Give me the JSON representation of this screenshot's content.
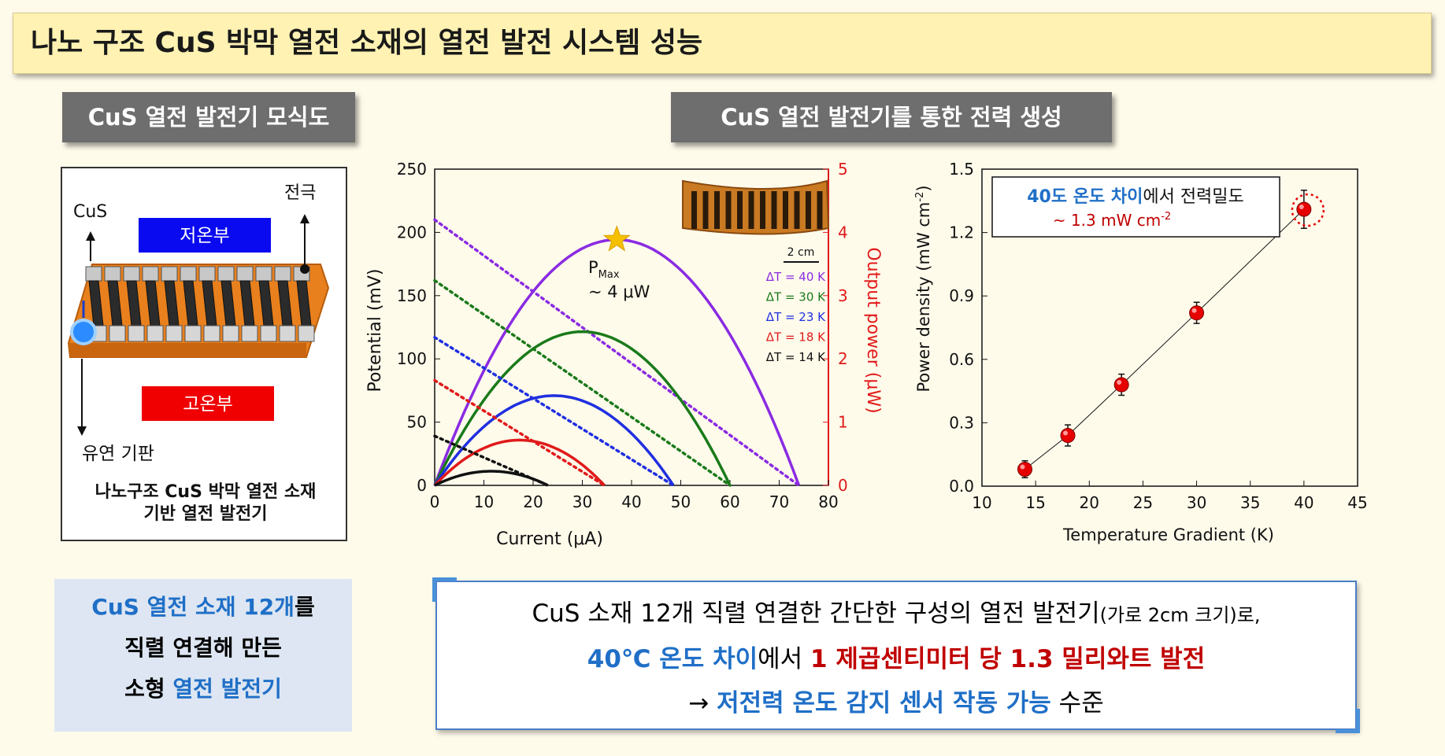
{
  "title": "나노 구조 CuS 박막 열전 소재의 열전 발전 시스템 성능",
  "left_header": "CuS 열전 발전기 모식도",
  "right_header": "CuS 열전 발전기를 통한 전력 생성",
  "schematic": {
    "label_cus": "CuS",
    "label_electrode": "전극",
    "label_cold": "저온부",
    "label_hot": "고온부",
    "label_substrate": "유연 기판",
    "caption_line1": "나노구조 CuS 박막 열전 소재",
    "caption_line2": "기반 열전 발전기"
  },
  "summary": {
    "line1_blue": "CuS 열전 소재 12개",
    "line1_rest": "를",
    "line2": "직렬 연결해 만든",
    "line3_prefix": "소형 ",
    "line3_blue": "열전 발전기"
  },
  "conclusion": {
    "line1_main": "CuS 소재 12개 직렬 연결한 간단한 구성의 열전 발전기",
    "line1_small": "(가로 2cm 크기)로,",
    "line2_blue": "40℃ 온도 차이",
    "line2_mid": "에서 ",
    "line2_red": "1 제곱센티미터 당 1.3 밀리와트 발전",
    "line3_arrow": "→ ",
    "line3_blue": "저전력 온도 감지 센서 작동 가능",
    "line3_rest": " 수준"
  },
  "chart_data": [
    {
      "type": "line",
      "title": "",
      "xlabel": "Current (μA)",
      "ylabel": "Potential (mV)",
      "y2label": "Output power (μW)",
      "xlim": [
        0,
        80
      ],
      "ylim": [
        0,
        250
      ],
      "y2lim": [
        0,
        5
      ],
      "xticks": [
        "0",
        "10",
        "20",
        "30",
        "40",
        "50",
        "60",
        "70",
        "80"
      ],
      "yticks": [
        "0",
        "50",
        "100",
        "150",
        "200",
        "250"
      ],
      "y2ticks": [
        "0",
        "1",
        "2",
        "3",
        "4",
        "5"
      ],
      "series": [
        {
          "name": "ΔT = 40 K",
          "color": "#8a2be2",
          "voc_mV": 210,
          "isc_uA": 74
        },
        {
          "name": "ΔT = 30 K",
          "color": "#1a7a1a",
          "voc_mV": 162,
          "isc_uA": 60
        },
        {
          "name": "ΔT = 23 K",
          "color": "#1f2fe0",
          "voc_mV": 117,
          "isc_uA": 48.5
        },
        {
          "name": "ΔT = 18 K",
          "color": "#e01a1a",
          "voc_mV": 83,
          "isc_uA": 34.5
        },
        {
          "name": "ΔT = 14 K",
          "color": "#111111",
          "voc_mV": 39,
          "isc_uA": 23
        }
      ],
      "annotation_line1": "P",
      "annotation_sub": "Max",
      "annotation_line2": "~ 4 μW",
      "scale_label": "2 cm"
    },
    {
      "type": "scatter",
      "title": "",
      "xlabel": "Temperature Gradient (K)",
      "ylabel": "Power density (mW cm",
      "ylabel_sup": "-2",
      "ylabel_end": ")",
      "xlim": [
        10,
        45
      ],
      "ylim": [
        0,
        1.5
      ],
      "xticks": [
        "10",
        "15",
        "20",
        "25",
        "30",
        "35",
        "40",
        "45"
      ],
      "yticks": [
        "0.0",
        "0.3",
        "0.6",
        "0.9",
        "1.2",
        "1.5"
      ],
      "x": [
        14,
        18,
        23,
        30,
        40
      ],
      "y": [
        0.08,
        0.24,
        0.48,
        0.82,
        1.31
      ],
      "yerr": [
        0.04,
        0.05,
        0.05,
        0.05,
        0.09
      ],
      "annotation_blue": "40도 온도 차이",
      "annotation_rest": "에서 전력밀도",
      "annotation_line2": "~ 1.3 mW cm",
      "annotation_sup": "-2"
    }
  ],
  "colors": {
    "accent_blue": "#1f6fc7",
    "accent_red": "#c00000",
    "cold_blue": "#0a0af0",
    "hot_red": "#f00000"
  }
}
